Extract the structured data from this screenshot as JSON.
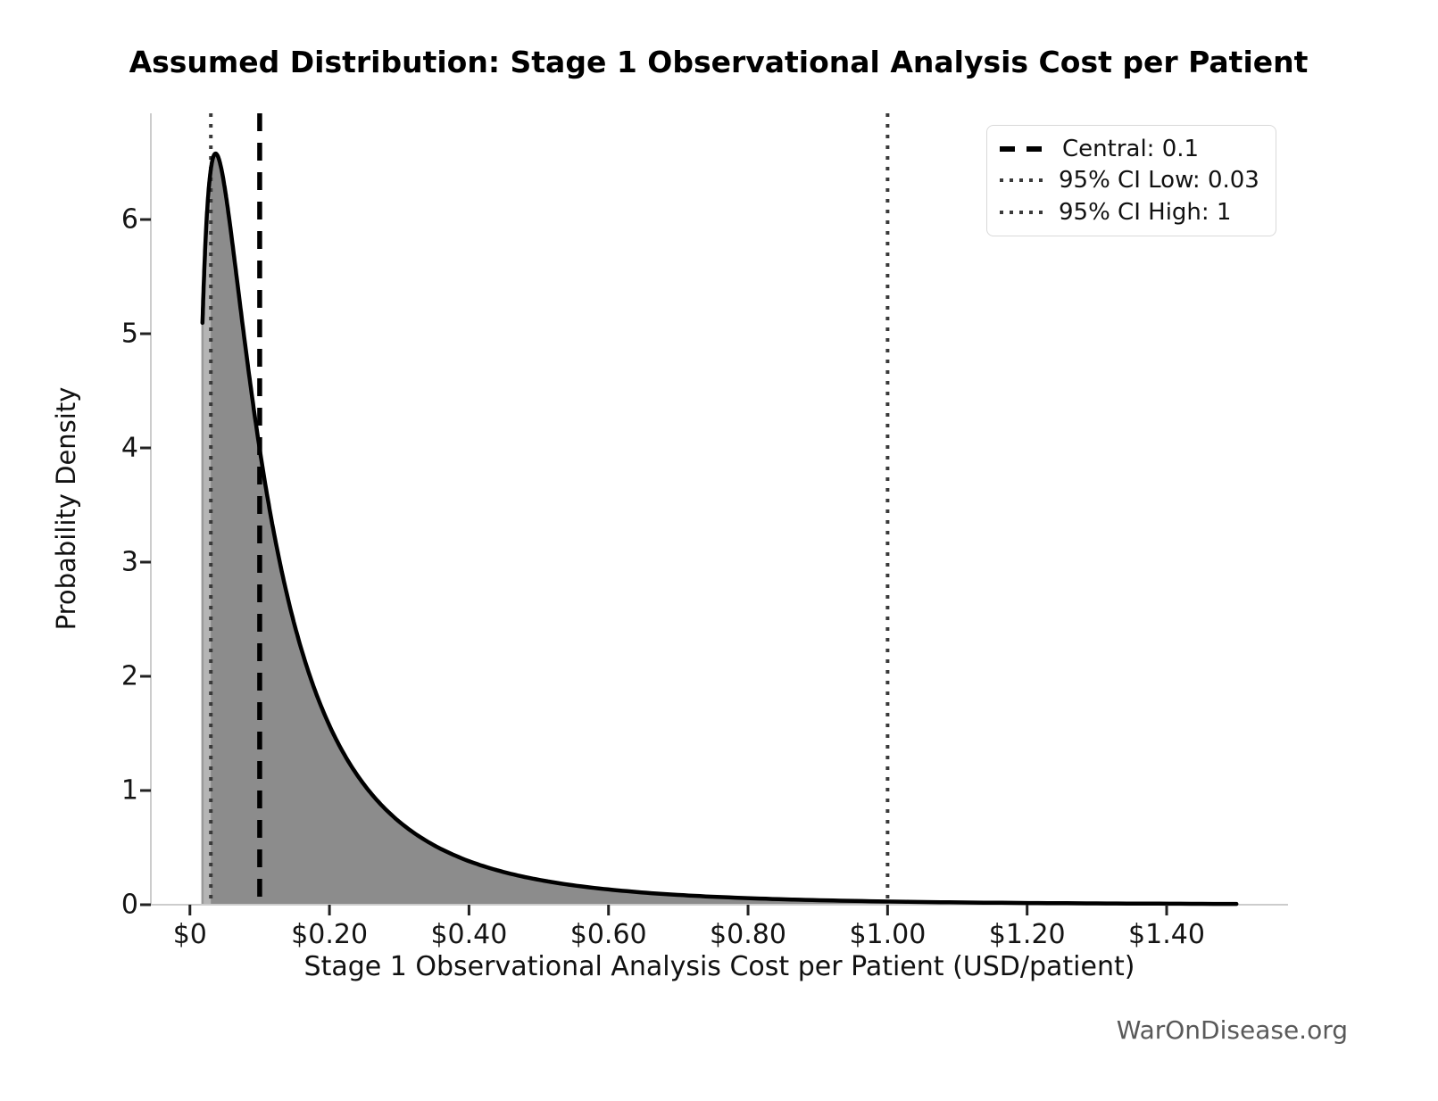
{
  "title": "Assumed Distribution: Stage 1 Observational Analysis Cost per Patient",
  "watermark": "WarOnDisease.org",
  "chart_data": {
    "type": "area",
    "title": "Assumed Distribution: Stage 1 Observational Analysis Cost per Patient",
    "xlabel": "Stage 1 Observational Analysis Cost per Patient (USD/patient)",
    "ylabel": "Probability Density",
    "xlim": [
      -0.056,
      1.574
    ],
    "ylim": [
      0,
      6.93
    ],
    "grid": false,
    "legend_position": "upper right",
    "distribution": {
      "family": "lognormal",
      "median": 0.1,
      "sigma": 1.0,
      "x_start": 0.018,
      "x_end": 1.5,
      "peak_x": 0.037,
      "peak_density": 6.56
    },
    "curve_points_sample": [
      [
        0.018,
        5.1
      ],
      [
        0.02,
        5.46
      ],
      [
        0.025,
        6.1
      ],
      [
        0.03,
        6.44
      ],
      [
        0.037,
        6.56
      ],
      [
        0.05,
        6.28
      ],
      [
        0.07,
        5.35
      ],
      [
        0.1,
        3.99
      ],
      [
        0.15,
        2.45
      ],
      [
        0.2,
        1.57
      ],
      [
        0.3,
        0.73
      ],
      [
        0.4,
        0.38
      ],
      [
        0.5,
        0.22
      ],
      [
        0.6,
        0.13
      ],
      [
        0.8,
        0.057
      ],
      [
        1.0,
        0.028
      ],
      [
        1.2,
        0.015
      ],
      [
        1.5,
        0.007
      ]
    ],
    "ci_region": [
      0.03,
      1.0
    ],
    "vlines": [
      {
        "name": "central",
        "value": 0.1,
        "style": "dashed",
        "color": "#000000",
        "legend_label": "Central: 0.1"
      },
      {
        "name": "ci-low",
        "value": 0.03,
        "style": "dotted",
        "color": "#3a3a3a",
        "legend_label": "95% CI Low: 0.03"
      },
      {
        "name": "ci-high",
        "value": 1,
        "style": "dotted",
        "color": "#3a3a3a",
        "legend_label": "95% CI High: 1"
      }
    ],
    "x_ticks": [
      {
        "value": 0,
        "label": "$0"
      },
      {
        "value": 0.2,
        "label": "$0.20"
      },
      {
        "value": 0.4,
        "label": "$0.40"
      },
      {
        "value": 0.6,
        "label": "$0.60"
      },
      {
        "value": 0.8,
        "label": "$0.80"
      },
      {
        "value": 1.0,
        "label": "$1.00"
      },
      {
        "value": 1.2,
        "label": "$1.20"
      },
      {
        "value": 1.4,
        "label": "$1.40"
      }
    ],
    "y_ticks": [
      {
        "value": 0,
        "label": "0"
      },
      {
        "value": 1,
        "label": "1"
      },
      {
        "value": 2,
        "label": "2"
      },
      {
        "value": 3,
        "label": "3"
      },
      {
        "value": 4,
        "label": "4"
      },
      {
        "value": 5,
        "label": "5"
      },
      {
        "value": 6,
        "label": "6"
      }
    ],
    "colors": {
      "curve": "#000000",
      "fill_base": "#b5b5b5",
      "fill_ci": "#8c8c8c",
      "fill_edge": "#999999",
      "spine": "#cccccc",
      "tick": "#222222"
    }
  }
}
